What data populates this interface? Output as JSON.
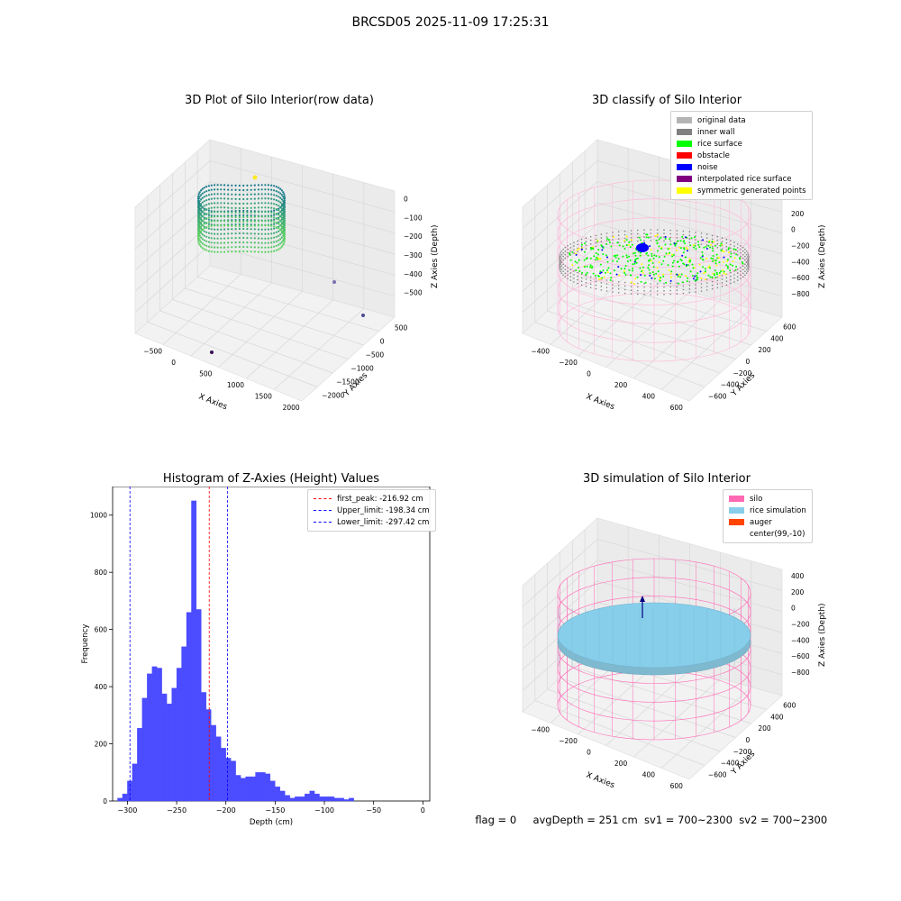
{
  "suptitle": "BRCSD05 2025-11-09 17:25:31",
  "panels": {
    "raw": {
      "title": "3D Plot of Silo Interior(row data)",
      "xlabel": "X Axies",
      "ylabel": "Y Axies",
      "zlabel": "Z Axies (Depth)",
      "xticks": [
        "−500",
        "0",
        "500",
        "1000",
        "1500",
        "2000"
      ],
      "yticks": [
        "500",
        "0",
        "−500",
        "−1000",
        "−1500",
        "−2000"
      ],
      "zticks": [
        "0",
        "−100",
        "−200",
        "−300",
        "−400",
        "−500"
      ]
    },
    "classify": {
      "title": "3D classify of Silo Interior",
      "xlabel": "X Axies",
      "ylabel": "Y Axies",
      "zlabel": "Z Axies (Depth)",
      "xticks": [
        "−400",
        "−200",
        "0",
        "200",
        "400",
        "600"
      ],
      "yticks": [
        "600",
        "400",
        "200",
        "0",
        "−200",
        "−400",
        "−600"
      ],
      "zticks": [
        "400",
        "200",
        "0",
        "−200",
        "−400",
        "−600",
        "−800"
      ],
      "legend": [
        {
          "label": "original data",
          "color": "#b4b4b4"
        },
        {
          "label": "inner wall",
          "color": "#808080"
        },
        {
          "label": "rice surface",
          "color": "#00ff00"
        },
        {
          "label": "obstacle",
          "color": "#ff0000"
        },
        {
          "label": "noise",
          "color": "#0000ff"
        },
        {
          "label": "interpolated rice surface",
          "color": "#800080"
        },
        {
          "label": "symmetric generated points",
          "color": "#ffff00"
        }
      ]
    },
    "simulation": {
      "title": "3D simulation of Silo Interior",
      "xlabel": "X Axies",
      "ylabel": "Y Axies",
      "zlabel": "Z Axies (Depth)",
      "xticks": [
        "−400",
        "−200",
        "0",
        "200",
        "400",
        "600"
      ],
      "yticks": [
        "600",
        "400",
        "200",
        "0",
        "−200",
        "−400",
        "−600"
      ],
      "zticks": [
        "400",
        "200",
        "0",
        "−200",
        "−400",
        "−600",
        "−800"
      ],
      "legend": [
        {
          "label": "silo",
          "color": "#ff69b4"
        },
        {
          "label": "rice simulation",
          "color": "#87ceeb"
        },
        {
          "label": "auger",
          "color": "#ff4500"
        },
        {
          "label": "center(99,-10)",
          "color": "#ffffff"
        }
      ]
    }
  },
  "footer": {
    "flag": "flag = 0",
    "avg": "avgDepth = 251 cm",
    "sv1": "sv1 = 700~2300",
    "sv2": "sv2 = 700~2300"
  },
  "chart_data": {
    "type": "bar",
    "title": "Histogram of Z-Axies (Height) Values",
    "xlabel": "Depth (cm)",
    "ylabel": "Frequency",
    "xlim": [
      -315,
      7
    ],
    "ylim": [
      0,
      1100
    ],
    "xticks": [
      -300,
      -250,
      -200,
      -150,
      -100,
      -50,
      0
    ],
    "yticks": [
      0,
      200,
      400,
      600,
      800,
      1000
    ],
    "bin_width": 5,
    "bar_color": "#4b4bff",
    "bin_starts": [
      -310,
      -305,
      -300,
      -295,
      -290,
      -285,
      -280,
      -275,
      -270,
      -265,
      -260,
      -255,
      -250,
      -245,
      -240,
      -235,
      -230,
      -225,
      -220,
      -215,
      -210,
      -205,
      -200,
      -195,
      -190,
      -185,
      -180,
      -175,
      -170,
      -165,
      -160,
      -155,
      -150,
      -145,
      -140,
      -135,
      -130,
      -125,
      -120,
      -115,
      -110,
      -105,
      -100,
      -95,
      -90,
      -85,
      -80,
      -75,
      -70,
      -65,
      -60,
      -55,
      -50,
      -45,
      -40,
      -35,
      -30,
      -25,
      -20,
      -15,
      -10,
      -5,
      0
    ],
    "counts": [
      10,
      25,
      70,
      130,
      255,
      360,
      445,
      470,
      465,
      375,
      340,
      395,
      465,
      540,
      660,
      1050,
      670,
      380,
      320,
      265,
      225,
      185,
      150,
      140,
      90,
      80,
      85,
      85,
      100,
      100,
      95,
      70,
      50,
      35,
      20,
      10,
      15,
      15,
      25,
      35,
      25,
      15,
      15,
      15,
      10,
      10,
      5,
      10,
      0,
      0,
      0,
      0,
      0,
      0,
      0,
      0,
      0,
      0,
      0,
      0,
      0,
      0,
      0
    ],
    "lines": [
      {
        "label": "first_peak: -216.92 cm",
        "x": -216.92,
        "color": "#ff0000"
      },
      {
        "label": "Upper_limit: -198.34 cm",
        "x": -198.34,
        "color": "#0000ff"
      },
      {
        "label": "Lower_limit: -297.42 cm",
        "x": -297.42,
        "color": "#0000ff"
      }
    ]
  }
}
